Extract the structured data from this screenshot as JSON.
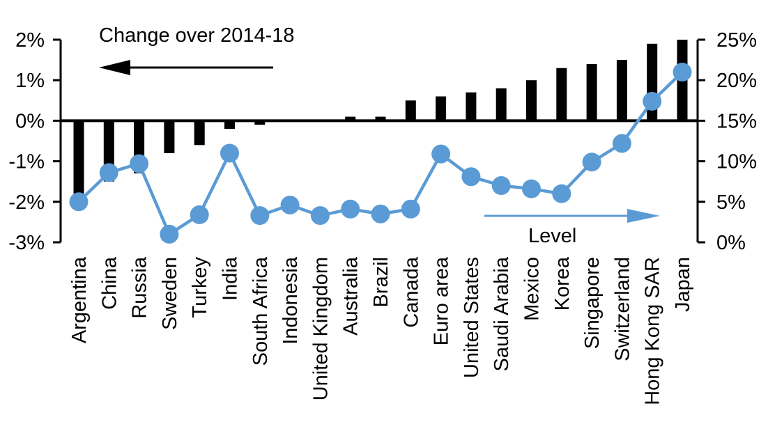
{
  "chart_data": {
    "type": "combo-bar-line",
    "title": "",
    "categories": [
      "Argentina",
      "China",
      "Russia",
      "Sweden",
      "Turkey",
      "India",
      "South Africa",
      "Indonesia",
      "United Kingdom",
      "Australia",
      "Brazil",
      "Canada",
      "Euro area",
      "United States",
      "Saudi Arabia",
      "Mexico",
      "Korea",
      "Singapore",
      "Switzerland",
      "Hong Kong SAR",
      "Japan"
    ],
    "series": [
      {
        "name": "Change over 2014-18",
        "type": "bar",
        "axis": "left",
        "color": "#000000",
        "values": [
          -1.8,
          -1.5,
          -1.3,
          -0.8,
          -0.6,
          -0.2,
          -0.1,
          0,
          0,
          0.1,
          0.1,
          0.5,
          0.6,
          0.7,
          0.8,
          1.0,
          1.3,
          1.4,
          1.5,
          1.9,
          2.0
        ]
      },
      {
        "name": "Level",
        "type": "line",
        "axis": "right",
        "color": "#5B9BD5",
        "values": [
          5.0,
          8.6,
          9.7,
          1.0,
          3.4,
          11.0,
          3.3,
          4.6,
          3.3,
          4.1,
          3.5,
          4.1,
          10.9,
          8.1,
          7.0,
          6.6,
          6.0,
          9.9,
          12.2,
          17.4,
          21.0
        ]
      }
    ],
    "left_axis": {
      "min": -3,
      "max": 2,
      "unit": "%",
      "tick_labels": [
        "2%",
        "1%",
        "0%",
        "-1%",
        "-2%",
        "-3%"
      ]
    },
    "right_axis": {
      "min": 0,
      "max": 25,
      "unit": "%",
      "tick_labels": [
        "25%",
        "20%",
        "15%",
        "10%",
        "5%",
        "0%"
      ]
    },
    "annotations": [
      {
        "text": "Change over 2014-18",
        "arrow": "left",
        "color": "#000000"
      },
      {
        "text": "Level",
        "arrow": "right",
        "color": "#5B9BD5"
      }
    ],
    "grid": false,
    "legend_position": "none"
  }
}
